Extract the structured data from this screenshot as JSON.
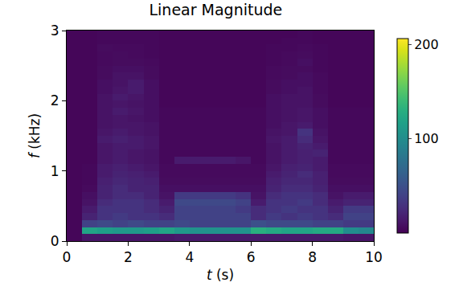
{
  "chart_data": {
    "type": "heatmap",
    "title": "Linear Magnitude",
    "x_label": "t (s)",
    "y_label": "f (kHz)",
    "color": "Viridis",
    "grid": false,
    "xlim": [
      0,
      10
    ],
    "xticks": [
      0,
      2,
      4,
      6,
      8,
      10
    ],
    "ylim": [
      0,
      3
    ],
    "yticks": [
      0,
      1,
      2,
      3
    ],
    "colorbar_lim": [
      0,
      206
    ],
    "colorbar_ticks": [
      100,
      200
    ],
    "x": [
      0.25,
      0.75,
      1.25,
      1.75,
      2.25,
      2.75,
      3.25,
      3.75,
      4.25,
      4.75,
      5.25,
      5.75,
      6.25,
      6.75,
      7.25,
      7.75,
      8.25,
      8.75,
      9.25,
      9.75
    ],
    "y": [
      0.05,
      0.15,
      0.25,
      0.35,
      0.45,
      0.55,
      0.65,
      0.75,
      0.85,
      0.95,
      1.05,
      1.15,
      1.25,
      1.35,
      1.45,
      1.55,
      1.65,
      1.75,
      1.85,
      1.95,
      2.05,
      2.15,
      2.25,
      2.35,
      2.45,
      2.55,
      2.65,
      2.75,
      2.85,
      2.95
    ],
    "cells": [
      [
        3,
        12,
        12,
        12,
        12,
        12,
        12,
        14,
        14,
        14,
        14,
        14,
        14,
        14,
        14,
        14,
        14,
        14,
        12,
        12
      ],
      [
        3,
        120,
        115,
        110,
        110,
        115,
        120,
        110,
        105,
        105,
        105,
        105,
        130,
        125,
        120,
        120,
        125,
        125,
        100,
        95
      ],
      [
        3,
        40,
        45,
        40,
        45,
        40,
        40,
        45,
        40,
        40,
        40,
        40,
        50,
        45,
        45,
        45,
        40,
        40,
        35,
        35
      ],
      [
        3,
        20,
        30,
        35,
        30,
        30,
        25,
        40,
        40,
        40,
        40,
        40,
        25,
        35,
        30,
        35,
        30,
        25,
        40,
        40
      ],
      [
        3,
        15,
        30,
        30,
        30,
        25,
        20,
        40,
        40,
        40,
        40,
        35,
        25,
        30,
        35,
        30,
        30,
        20,
        35,
        35
      ],
      [
        3,
        10,
        25,
        30,
        30,
        25,
        15,
        45,
        45,
        45,
        45,
        40,
        15,
        30,
        30,
        35,
        25,
        15,
        20,
        20
      ],
      [
        3,
        8,
        20,
        25,
        25,
        20,
        10,
        35,
        35,
        35,
        35,
        30,
        10,
        25,
        30,
        30,
        25,
        10,
        15,
        15
      ],
      [
        3,
        5,
        20,
        25,
        20,
        20,
        8,
        8,
        8,
        8,
        8,
        8,
        8,
        20,
        25,
        25,
        20,
        8,
        8,
        8
      ],
      [
        3,
        4,
        18,
        22,
        20,
        18,
        6,
        6,
        6,
        6,
        6,
        6,
        6,
        18,
        22,
        22,
        18,
        6,
        6,
        6
      ],
      [
        3,
        4,
        15,
        20,
        18,
        15,
        5,
        5,
        5,
        5,
        5,
        5,
        5,
        15,
        20,
        25,
        18,
        5,
        5,
        5
      ],
      [
        3,
        4,
        15,
        18,
        15,
        12,
        5,
        5,
        5,
        5,
        5,
        5,
        5,
        12,
        18,
        20,
        15,
        5,
        5,
        5
      ],
      [
        3,
        3,
        12,
        15,
        12,
        10,
        4,
        15,
        15,
        15,
        15,
        12,
        4,
        10,
        15,
        18,
        15,
        4,
        4,
        4
      ],
      [
        3,
        3,
        12,
        15,
        12,
        10,
        4,
        4,
        4,
        4,
        4,
        4,
        4,
        10,
        15,
        18,
        20,
        4,
        4,
        4
      ],
      [
        3,
        3,
        12,
        15,
        15,
        12,
        4,
        4,
        4,
        4,
        4,
        4,
        4,
        10,
        15,
        20,
        15,
        4,
        4,
        4
      ],
      [
        3,
        3,
        15,
        18,
        15,
        12,
        4,
        4,
        4,
        4,
        4,
        4,
        4,
        12,
        15,
        25,
        12,
        4,
        4,
        4
      ],
      [
        3,
        3,
        12,
        15,
        12,
        10,
        4,
        4,
        4,
        4,
        4,
        4,
        4,
        10,
        12,
        30,
        10,
        4,
        4,
        4
      ],
      [
        3,
        3,
        10,
        12,
        12,
        10,
        4,
        4,
        4,
        4,
        4,
        4,
        4,
        8,
        12,
        15,
        8,
        4,
        4,
        4
      ],
      [
        3,
        3,
        10,
        12,
        10,
        8,
        4,
        4,
        4,
        4,
        4,
        4,
        4,
        8,
        10,
        12,
        8,
        4,
        4,
        4
      ],
      [
        3,
        3,
        10,
        15,
        12,
        8,
        4,
        4,
        4,
        4,
        4,
        4,
        4,
        8,
        10,
        12,
        8,
        4,
        4,
        4
      ],
      [
        3,
        3,
        10,
        12,
        10,
        8,
        3,
        3,
        3,
        3,
        3,
        3,
        3,
        8,
        10,
        10,
        6,
        3,
        3,
        3
      ],
      [
        3,
        3,
        10,
        15,
        12,
        8,
        3,
        3,
        3,
        3,
        3,
        3,
        3,
        8,
        10,
        10,
        6,
        3,
        3,
        3
      ],
      [
        3,
        3,
        8,
        12,
        15,
        8,
        3,
        3,
        3,
        3,
        3,
        3,
        3,
        6,
        8,
        10,
        5,
        3,
        3,
        3
      ],
      [
        3,
        3,
        8,
        10,
        15,
        8,
        3,
        3,
        3,
        3,
        3,
        3,
        3,
        6,
        8,
        8,
        5,
        3,
        3,
        3
      ],
      [
        3,
        3,
        6,
        10,
        10,
        6,
        3,
        3,
        3,
        3,
        3,
        3,
        3,
        5,
        6,
        8,
        5,
        3,
        3,
        3
      ],
      [
        3,
        3,
        6,
        8,
        8,
        6,
        3,
        3,
        3,
        3,
        3,
        3,
        3,
        5,
        6,
        6,
        4,
        3,
        3,
        3
      ],
      [
        3,
        3,
        5,
        6,
        6,
        5,
        3,
        3,
        3,
        3,
        3,
        3,
        3,
        4,
        5,
        8,
        4,
        3,
        3,
        3
      ],
      [
        3,
        3,
        5,
        6,
        5,
        4,
        3,
        3,
        3,
        3,
        3,
        3,
        3,
        4,
        5,
        6,
        4,
        3,
        3,
        3
      ],
      [
        3,
        3,
        6,
        5,
        5,
        4,
        3,
        3,
        3,
        3,
        3,
        3,
        3,
        4,
        4,
        5,
        4,
        3,
        3,
        3
      ],
      [
        3,
        3,
        4,
        4,
        4,
        4,
        3,
        3,
        3,
        3,
        3,
        3,
        3,
        3,
        4,
        4,
        3,
        3,
        3,
        3
      ],
      [
        3,
        3,
        4,
        4,
        4,
        4,
        3,
        3,
        3,
        3,
        3,
        3,
        3,
        3,
        3,
        4,
        3,
        3,
        3,
        3
      ]
    ]
  }
}
